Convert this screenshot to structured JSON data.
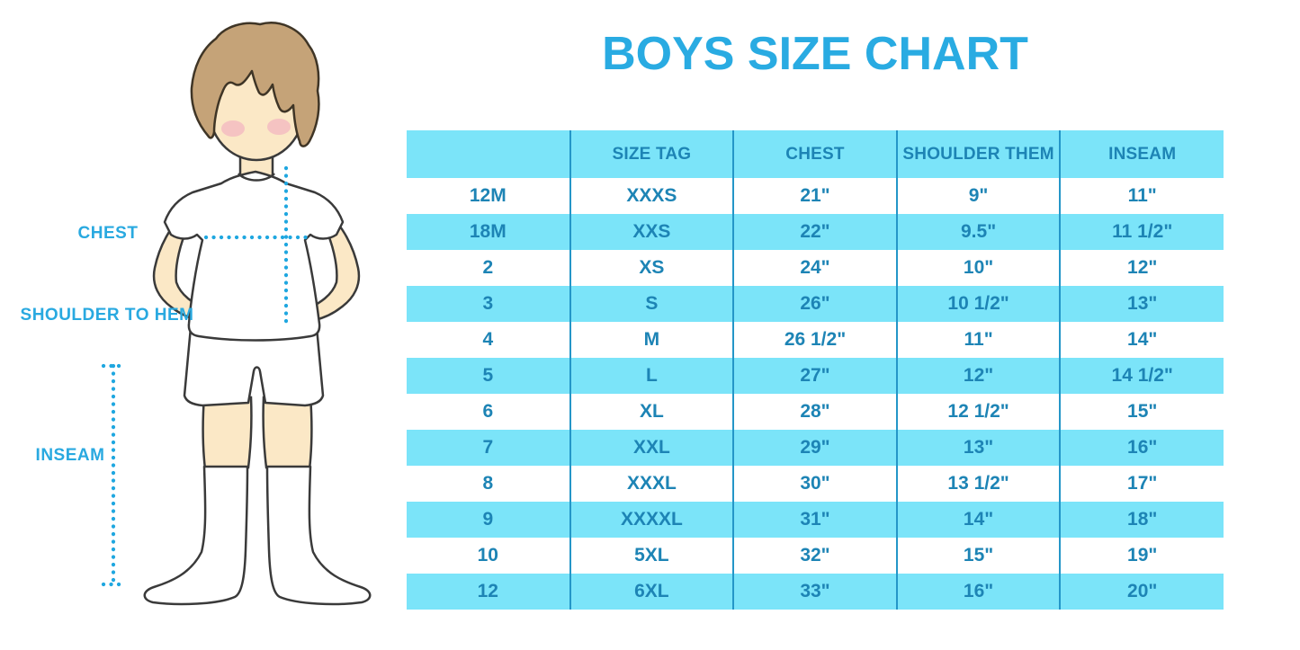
{
  "title": "BOYS SIZE CHART",
  "figure": {
    "labels": {
      "chest": "CHEST",
      "shoulder_to_hem": "SHOULDER TO HEM",
      "inseam": "INSEAM"
    }
  },
  "chart_data": {
    "type": "table",
    "title": "BOYS SIZE CHART",
    "columns": [
      "",
      "SIZE TAG",
      "CHEST",
      "SHOULDER THEM",
      "INSEAM"
    ],
    "rows": [
      [
        "12M",
        "XXXS",
        "21\"",
        "9\"",
        "11\""
      ],
      [
        "18M",
        "XXS",
        "22\"",
        "9.5\"",
        "11 1/2\""
      ],
      [
        "2",
        "XS",
        "24\"",
        "10\"",
        "12\""
      ],
      [
        "3",
        "S",
        "26\"",
        "10 1/2\"",
        "13\""
      ],
      [
        "4",
        "M",
        "26 1/2\"",
        "11\"",
        "14\""
      ],
      [
        "5",
        "L",
        "27\"",
        "12\"",
        "14 1/2\""
      ],
      [
        "6",
        "XL",
        "28\"",
        "12 1/2\"",
        "15\""
      ],
      [
        "7",
        "XXL",
        "29\"",
        "13\"",
        "16\""
      ],
      [
        "8",
        "XXXL",
        "30\"",
        "13 1/2\"",
        "17\""
      ],
      [
        "9",
        "XXXXL",
        "31\"",
        "14\"",
        "18\""
      ],
      [
        "10",
        "5XL",
        "32\"",
        "15\"",
        "19\""
      ],
      [
        "12",
        "6XL",
        "33\"",
        "16\"",
        "20\""
      ]
    ]
  },
  "colors": {
    "title_blue": "#29ABE2",
    "label_blue": "#29A9E0",
    "row_highlight": "#7BE4F9",
    "table_text": "#1D84B5",
    "divider": "#2496C8",
    "dotted_line": "#1FA7E0",
    "skin": "#FBE8C6",
    "hair": "#C5A378"
  }
}
